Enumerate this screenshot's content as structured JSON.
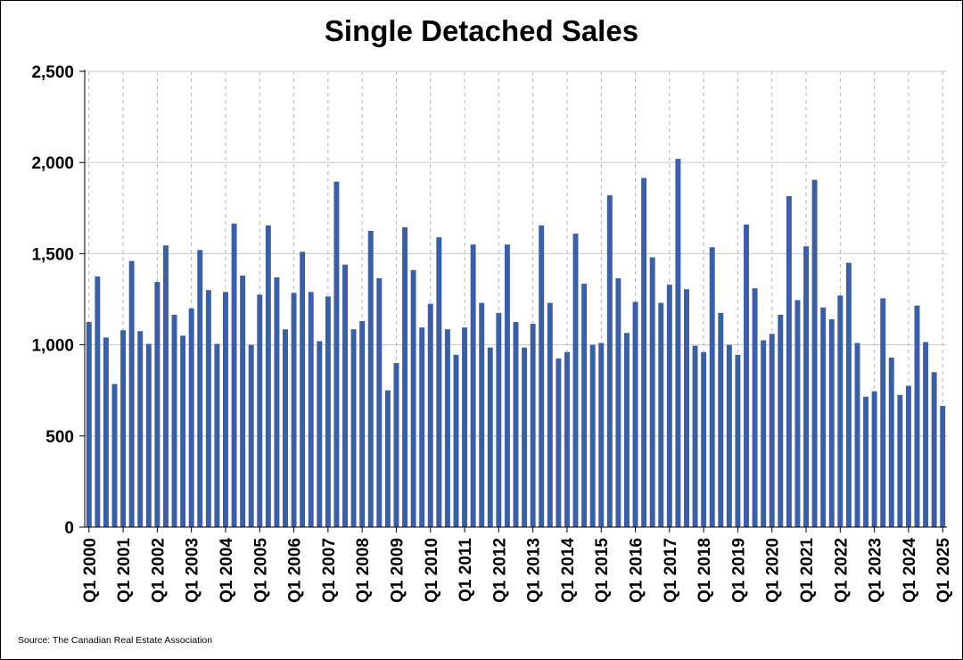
{
  "chart_data": {
    "type": "bar",
    "title": "Single Detached Sales",
    "xlabel": "",
    "ylabel": "",
    "ylim": [
      0,
      2500
    ],
    "yticks": [
      0,
      500,
      1000,
      1500,
      2000,
      2500
    ],
    "ytick_labels": [
      "0",
      "500",
      "1,000",
      "1,500",
      "2,000",
      "2,500"
    ],
    "xtick_labels": [
      "Q1 2000",
      "Q1 2001",
      "Q1 2002",
      "Q1 2003",
      "Q1 2004",
      "Q1 2005",
      "Q1 2006",
      "Q1 2007",
      "Q1 2008",
      "Q1 2009",
      "Q1 2010",
      "Q1 2011",
      "Q1 2012",
      "Q1 2013",
      "Q1 2014",
      "Q1 2015",
      "Q1 2016",
      "Q1 2017",
      "Q1 2018",
      "Q1 2019",
      "Q1 2020",
      "Q1 2021",
      "Q1 2022",
      "Q1 2023",
      "Q1 2024",
      "Q1 2025"
    ],
    "grid": "horizontal solid, vertical dashed at Q1 of each year",
    "bar_color": "#3a5fa8",
    "categories": [
      "Q1 2000",
      "Q2 2000",
      "Q3 2000",
      "Q4 2000",
      "Q1 2001",
      "Q2 2001",
      "Q3 2001",
      "Q4 2001",
      "Q1 2002",
      "Q2 2002",
      "Q3 2002",
      "Q4 2002",
      "Q1 2003",
      "Q2 2003",
      "Q3 2003",
      "Q4 2003",
      "Q1 2004",
      "Q2 2004",
      "Q3 2004",
      "Q4 2004",
      "Q1 2005",
      "Q2 2005",
      "Q3 2005",
      "Q4 2005",
      "Q1 2006",
      "Q2 2006",
      "Q3 2006",
      "Q4 2006",
      "Q1 2007",
      "Q2 2007",
      "Q3 2007",
      "Q4 2007",
      "Q1 2008",
      "Q2 2008",
      "Q3 2008",
      "Q4 2008",
      "Q1 2009",
      "Q2 2009",
      "Q3 2009",
      "Q4 2009",
      "Q1 2010",
      "Q2 2010",
      "Q3 2010",
      "Q4 2010",
      "Q1 2011",
      "Q2 2011",
      "Q3 2011",
      "Q4 2011",
      "Q1 2012",
      "Q2 2012",
      "Q3 2012",
      "Q4 2012",
      "Q1 2013",
      "Q2 2013",
      "Q3 2013",
      "Q4 2013",
      "Q1 2014",
      "Q2 2014",
      "Q3 2014",
      "Q4 2014",
      "Q1 2015",
      "Q2 2015",
      "Q3 2015",
      "Q4 2015",
      "Q1 2016",
      "Q2 2016",
      "Q3 2016",
      "Q4 2016",
      "Q1 2017",
      "Q2 2017",
      "Q3 2017",
      "Q4 2017",
      "Q1 2018",
      "Q2 2018",
      "Q3 2018",
      "Q4 2018",
      "Q1 2019",
      "Q2 2019",
      "Q3 2019",
      "Q4 2019",
      "Q1 2020",
      "Q2 2020",
      "Q3 2020",
      "Q4 2020",
      "Q1 2021",
      "Q2 2021",
      "Q3 2021",
      "Q4 2021",
      "Q1 2022",
      "Q2 2022",
      "Q3 2022",
      "Q4 2022",
      "Q1 2023",
      "Q2 2023",
      "Q3 2023",
      "Q4 2023",
      "Q1 2024",
      "Q2 2024",
      "Q3 2024",
      "Q4 2024",
      "Q1 2025"
    ],
    "values": [
      1125,
      1375,
      1040,
      785,
      1080,
      1460,
      1075,
      1005,
      1345,
      1545,
      1165,
      1050,
      1200,
      1520,
      1300,
      1005,
      1290,
      1665,
      1380,
      1000,
      1275,
      1655,
      1370,
      1085,
      1285,
      1510,
      1290,
      1020,
      1265,
      1895,
      1440,
      1085,
      1130,
      1625,
      1365,
      750,
      900,
      1645,
      1410,
      1095,
      1225,
      1590,
      1085,
      945,
      1095,
      1550,
      1230,
      985,
      1175,
      1550,
      1125,
      985,
      1115,
      1655,
      1230,
      925,
      960,
      1610,
      1335,
      1000,
      1010,
      1820,
      1365,
      1065,
      1235,
      1915,
      1480,
      1230,
      1330,
      2020,
      1305,
      995,
      960,
      1535,
      1175,
      1000,
      945,
      1660,
      1310,
      1025,
      1060,
      1165,
      1815,
      1245,
      1540,
      1905,
      1205,
      1140,
      1270,
      1450,
      1010,
      715,
      745,
      1255,
      930,
      725,
      775,
      1215,
      1015,
      850,
      665
    ]
  },
  "source": "Source: The Canadian Real Estate Association"
}
